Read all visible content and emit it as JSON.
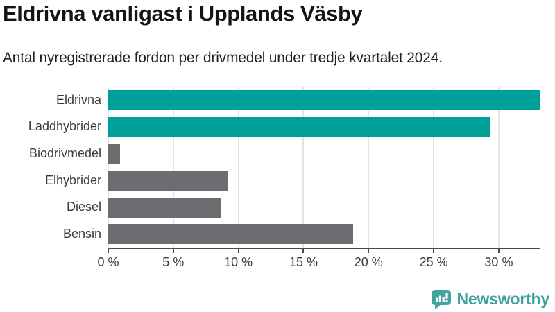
{
  "header": {
    "title": "Eldrivna vanligast i Upplands Väsby",
    "subtitle": "Antal nyregistrerade fordon per drivmedel under tredje kvartalet 2024."
  },
  "chart_data": {
    "type": "bar",
    "orientation": "horizontal",
    "title": "Eldrivna vanligast i Upplands Väsby",
    "subtitle": "Antal nyregistrerade fordon per drivmedel under tredje kvartalet 2024.",
    "categories": [
      "Eldrivna",
      "Laddhybrider",
      "Biodrivmedel",
      "Elhybrider",
      "Diesel",
      "Bensin"
    ],
    "values": [
      33.2,
      29.3,
      0.9,
      9.2,
      8.7,
      18.8
    ],
    "unit": "%",
    "xlim": [
      0,
      33.2
    ],
    "x_ticks": [
      0,
      5,
      10,
      15,
      20,
      25,
      30
    ],
    "x_tick_labels": [
      "0 %",
      "5 %",
      "10 %",
      "15 %",
      "20 %",
      "25 %",
      "30 %"
    ],
    "grid": true,
    "legend": false,
    "bar_colors": [
      "#00a09a",
      "#00a09a",
      "#6d6c71",
      "#6d6c71",
      "#6d6c71",
      "#6d6c71"
    ],
    "highlight_color": "#00a09a",
    "default_color": "#6d6c71"
  },
  "colors": {
    "background": "#ffffff",
    "axis_line": "#4a4a4a",
    "gridline": "#e3e3e3",
    "label_text": "#3c3c3c",
    "title_text": "#141414"
  },
  "footer": {
    "brand": "Newsworthy",
    "brand_color": "#3ba29d",
    "logo_icon": "speech-bubble-bar-chart-icon"
  }
}
